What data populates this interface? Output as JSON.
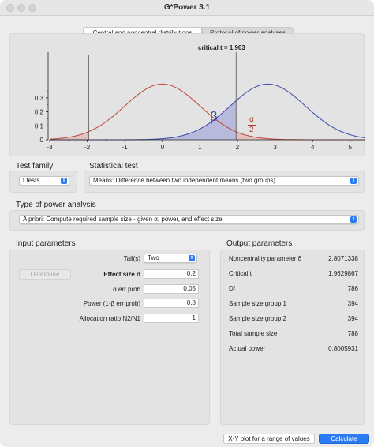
{
  "window": {
    "title": "G*Power 3.1"
  },
  "tabs": [
    {
      "label": "Central and noncentral distributions",
      "selected": true
    },
    {
      "label": "Protocol of power analyses",
      "selected": false
    }
  ],
  "plot": {
    "critical_label": "critical t = 1.963",
    "beta_symbol": "β",
    "alpha_symbol": "α",
    "alpha_divisor": "2",
    "x_ticks": [
      "-3",
      "-2",
      "-1",
      "0",
      "1",
      "2",
      "3",
      "4",
      "5"
    ],
    "y_ticks": [
      "0",
      "0.1",
      "0.2",
      "0.3"
    ],
    "colors": {
      "central": "#c0443a",
      "noncentral": "#3a4aa8",
      "beta_fill": "#a8acd8",
      "alpha_fill": "#e0b0b0"
    }
  },
  "test_family": {
    "label": "Test family",
    "value": "t tests"
  },
  "statistical_test": {
    "label": "Statistical test",
    "value": "Means: Difference between two independent means (two groups)"
  },
  "type_of_power_analysis": {
    "label": "Type of power analysis",
    "value": "A priori: Compute required sample size - given α, power, and effect size"
  },
  "input": {
    "title": "Input parameters",
    "determine_label": "Determine",
    "tails": {
      "label": "Tail(s)",
      "value": "Two"
    },
    "params": [
      {
        "label": "Effect size d",
        "value": "0.2"
      },
      {
        "label": "α err prob",
        "value": "0.05"
      },
      {
        "label": "Power (1-β err prob)",
        "value": "0.8"
      },
      {
        "label": "Allocation ratio N2/N1",
        "value": "1"
      }
    ]
  },
  "output": {
    "title": "Output parameters",
    "params": [
      {
        "label": "Noncentrality parameter δ",
        "value": "2.8071338"
      },
      {
        "label": "Critical t",
        "value": "1.9629867"
      },
      {
        "label": "Df",
        "value": "786"
      },
      {
        "label": "Sample size group 1",
        "value": "394"
      },
      {
        "label": "Sample size group 2",
        "value": "394"
      },
      {
        "label": "Total sample size",
        "value": "788"
      },
      {
        "label": "Actual power",
        "value": "0.8005931"
      }
    ]
  },
  "buttons": {
    "xy_plot": "X-Y plot for a range of values",
    "calculate": "Calculate"
  }
}
